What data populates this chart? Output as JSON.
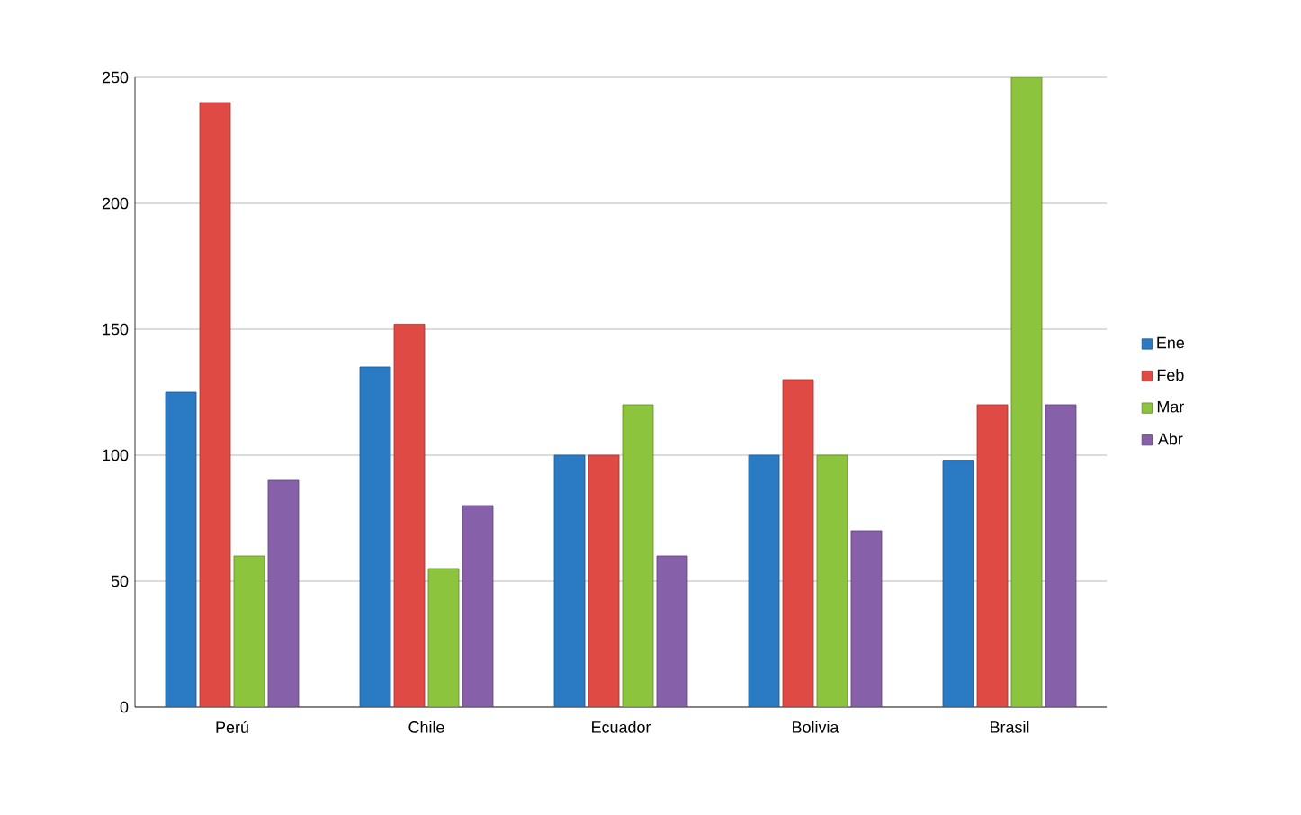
{
  "chart_data": {
    "type": "bar",
    "categories": [
      "Perú",
      "Chile",
      "Ecuador",
      "Bolivia",
      "Brasil"
    ],
    "series": [
      {
        "name": "Ene",
        "color": "#2a7bc4",
        "values": [
          125,
          135,
          100,
          100,
          98
        ]
      },
      {
        "name": "Feb",
        "color": "#e04a44",
        "values": [
          240,
          152,
          100,
          130,
          120
        ]
      },
      {
        "name": "Mar",
        "color": "#8cc43e",
        "values": [
          60,
          55,
          120,
          100,
          250
        ]
      },
      {
        "name": "Abr",
        "color": "#8660a8",
        "values": [
          90,
          80,
          60,
          70,
          120
        ]
      }
    ],
    "ylim": [
      0,
      250
    ],
    "yticks": [
      0,
      50,
      100,
      150,
      200,
      250
    ],
    "grid": "y",
    "legend": "right"
  }
}
